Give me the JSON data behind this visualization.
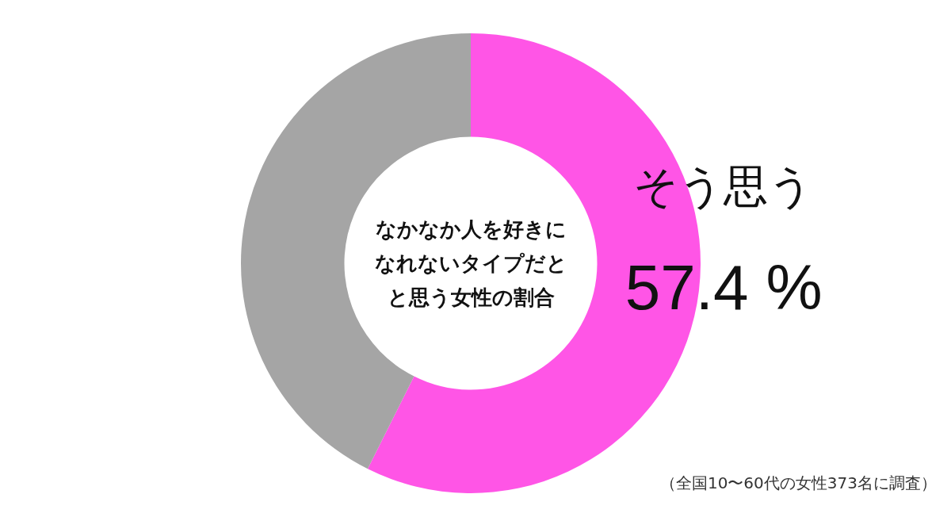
{
  "chart_data": {
    "type": "donut",
    "title": "なかなか人を好きになれないタイプだとと思う女性の割合",
    "categories": [
      "そう思う",
      null
    ],
    "values": [
      57.4,
      42.6
    ],
    "colors": [
      "#ff55e6",
      "#a5a5a5"
    ],
    "value_labels": [
      "57.4 %",
      null
    ],
    "annotations": [
      "（全国10〜60代の女性373名に調査）"
    ]
  }
}
